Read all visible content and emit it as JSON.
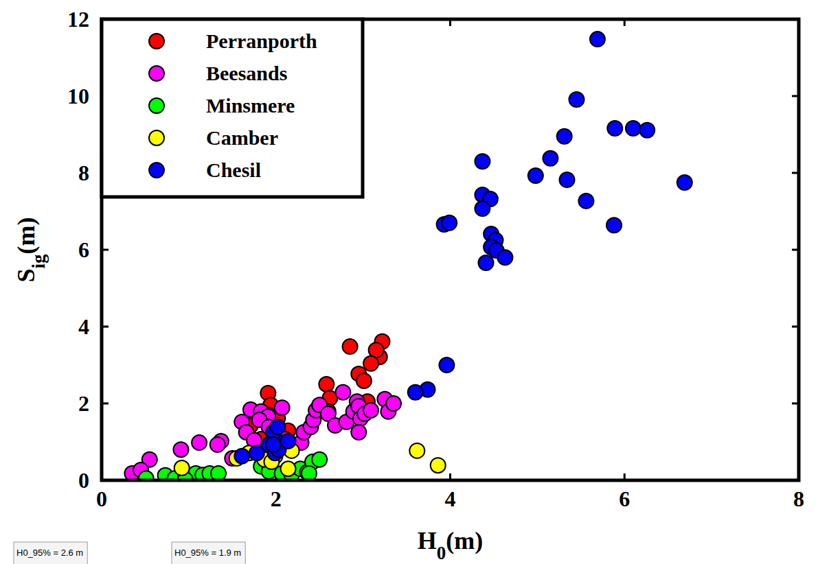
{
  "chart_data": {
    "type": "scatter",
    "x_label": "H0(m)",
    "y_label": "Sig(m)",
    "xlim": [
      0,
      8
    ],
    "ylim": [
      0,
      12
    ],
    "xticks": [
      0,
      2,
      4,
      6,
      8
    ],
    "yticks": [
      0,
      2,
      4,
      6,
      8,
      10,
      12
    ],
    "legend": "upper left",
    "marker": "circle",
    "annotations": [
      "H0_95% = 2.6 m",
      "H0_95% = 1.9 m"
    ],
    "series": [
      {
        "name": "Perranporth",
        "color": "#ff0000",
        "x": [
          3.22,
          3.19,
          3.15,
          3.09,
          2.85,
          2.95,
          3.01,
          2.58,
          2.62,
          1.91,
          3.05,
          1.94,
          2.6,
          1.91,
          2.02,
          1.71,
          2.14,
          1.83
        ],
        "values": [
          3.61,
          3.21,
          3.39,
          3.04,
          3.48,
          2.77,
          2.59,
          2.5,
          2.14,
          2.27,
          2.05,
          1.96,
          1.79,
          1.7,
          1.61,
          1.43,
          1.29,
          1.07
        ]
      },
      {
        "name": "Beesands",
        "color": "#ff00ff",
        "x": [
          0.35,
          0.55,
          0.45,
          0.91,
          1.12,
          1.37,
          1.33,
          1.71,
          1.83,
          1.91,
          2.07,
          1.81,
          1.61,
          1.66,
          1.75,
          1.92,
          2.1,
          2.29,
          2.32,
          2.4,
          2.43,
          2.46,
          2.5,
          2.6,
          2.68,
          2.77,
          2.81,
          2.89,
          2.93,
          2.95,
          2.97,
          2.95,
          3.02,
          3.09,
          3.25,
          3.29,
          3.35,
          1.5
        ],
        "values": [
          0.18,
          0.54,
          0.27,
          0.8,
          0.98,
          1.02,
          0.93,
          1.84,
          1.79,
          1.66,
          1.89,
          1.57,
          1.52,
          1.25,
          1.04,
          1.39,
          1.07,
          0.98,
          1.25,
          1.39,
          1.57,
          1.82,
          1.96,
          1.73,
          1.43,
          2.29,
          1.52,
          1.79,
          2.05,
          1.93,
          1.61,
          1.25,
          1.73,
          1.82,
          2.11,
          1.79,
          2.0,
          0.57
        ]
      },
      {
        "name": "Minsmere",
        "color": "#00ff00",
        "x": [
          0.51,
          0.73,
          0.84,
          0.96,
          1.08,
          1.16,
          1.24,
          1.34,
          0.96,
          1.83,
          1.92,
          2.07,
          2.18,
          2.28,
          2.36,
          2.42,
          2.5,
          2.38
        ],
        "values": [
          0.05,
          0.13,
          0.05,
          0.09,
          0.18,
          0.14,
          0.18,
          0.18,
          0.02,
          0.36,
          0.23,
          0.18,
          0.14,
          0.3,
          0.21,
          0.48,
          0.54,
          0.18
        ]
      },
      {
        "name": "Camber",
        "color": "#ffff00",
        "x": [
          0.92,
          1.55,
          1.69,
          1.87,
          1.99,
          2.14,
          2.18,
          3.62,
          3.86,
          1.95
        ],
        "values": [
          0.32,
          0.57,
          0.71,
          0.54,
          0.63,
          0.3,
          0.77,
          0.77,
          0.39,
          0.48
        ]
      },
      {
        "name": "Chesil",
        "color": "#0000ff",
        "x": [
          5.69,
          5.45,
          5.89,
          6.1,
          6.26,
          5.31,
          4.37,
          5.15,
          4.98,
          5.34,
          6.69,
          4.37,
          4.46,
          4.37,
          5.56,
          3.93,
          3.99,
          5.88,
          4.47,
          4.52,
          4.47,
          4.53,
          4.63,
          4.41,
          3.96,
          3.74,
          3.6,
          1.99,
          1.97,
          2.02,
          1.92,
          1.99,
          2.03,
          2.14,
          1.78,
          1.61,
          1.97
        ],
        "values": [
          11.48,
          9.91,
          9.16,
          9.16,
          9.11,
          8.95,
          8.3,
          8.38,
          7.93,
          7.82,
          7.75,
          7.43,
          7.32,
          7.07,
          7.27,
          6.66,
          6.7,
          6.64,
          6.41,
          6.25,
          6.07,
          5.98,
          5.8,
          5.66,
          3.0,
          2.36,
          2.29,
          1.07,
          1.25,
          1.39,
          0.93,
          0.71,
          0.8,
          1.02,
          0.71,
          0.63,
          0.93
        ]
      }
    ]
  }
}
